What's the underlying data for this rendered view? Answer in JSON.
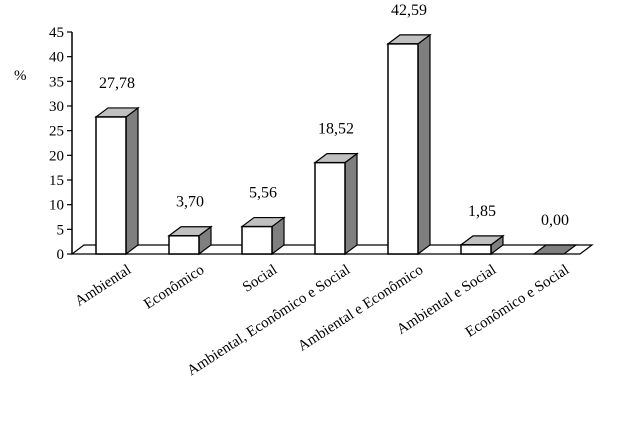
{
  "chart_data": {
    "type": "bar",
    "ylabel": "%",
    "ylim": [
      0,
      45
    ],
    "yticks": [
      0,
      5,
      10,
      15,
      20,
      25,
      30,
      35,
      40,
      45
    ],
    "categories": [
      "Ambiental",
      "Econômico",
      "Social",
      "Ambiental, Econômico e Social",
      "Ambiental e Econômico",
      "Ambiental e Social",
      "Econômico e Social"
    ],
    "values": [
      27.78,
      3.7,
      5.56,
      18.52,
      42.59,
      1.85,
      0.0
    ],
    "value_labels": [
      "27,78",
      "3,70",
      "5,56",
      "18,52",
      "42,59",
      "1,85",
      "0,00"
    ],
    "grid": false,
    "legend": "none",
    "style": "3d",
    "colors": {
      "bar_front": "#ffffff",
      "bar_side": "#7f7f7f",
      "bar_top": "#c0c0c0",
      "outline": "#000000"
    }
  }
}
